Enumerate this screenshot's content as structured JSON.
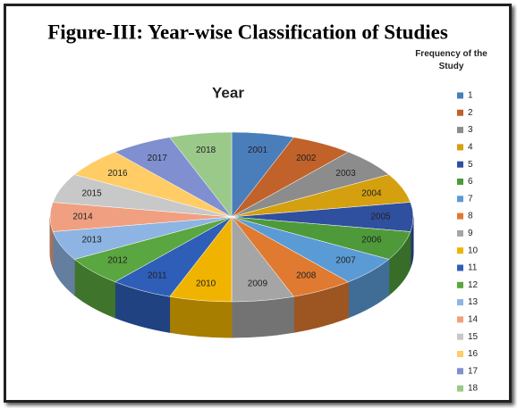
{
  "chart_data": {
    "type": "pie",
    "page_title": "Figure-III: Year-wise Classification of Studies",
    "title": "Year",
    "legend_title": "Frequency of the Study",
    "legend_labels": [
      "1",
      "2",
      "3",
      "4",
      "5",
      "6",
      "7",
      "8",
      "9",
      "10",
      "11",
      "12",
      "13",
      "14",
      "15",
      "16",
      "17",
      "18"
    ],
    "categories": [
      "2001",
      "2002",
      "2003",
      "2004",
      "2005",
      "2006",
      "2007",
      "2008",
      "2009",
      "2010",
      "2011",
      "2012",
      "2013",
      "2014",
      "2015",
      "2016",
      "2017",
      "2018"
    ],
    "values": [
      1,
      1,
      1,
      1,
      1,
      1,
      1,
      1,
      1,
      1,
      1,
      1,
      1,
      1,
      1,
      1,
      1,
      1
    ],
    "colors": [
      "#4a7ebb",
      "#c0622a",
      "#8c8c8c",
      "#d4a00f",
      "#2f4f9f",
      "#4e9a3a",
      "#5b9bd5",
      "#e07a30",
      "#a5a5a5",
      "#f0b400",
      "#2e5eb8",
      "#5aa640",
      "#8db4e2",
      "#f0a080",
      "#c8c8c8",
      "#ffcc66",
      "#7f8fd0",
      "#9bc98a"
    ],
    "legend_position": "right"
  }
}
